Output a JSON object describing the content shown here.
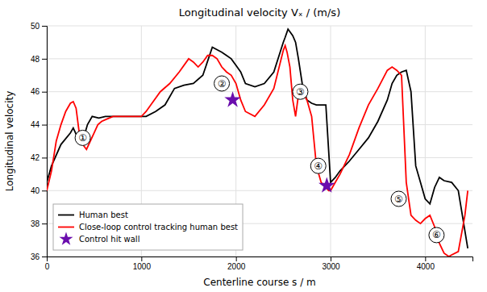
{
  "chart_data": {
    "type": "line",
    "title": "Longitudinal velocity Vₓ / (m/s)",
    "xlabel": "Centerline course s / m",
    "ylabel": "Longitudinal velocity",
    "xlim": [
      0,
      4500
    ],
    "ylim": [
      36,
      50
    ],
    "xticks": [
      0,
      1000,
      2000,
      3000,
      4000
    ],
    "yticks": [
      36,
      38,
      40,
      42,
      44,
      46,
      48,
      50
    ],
    "grid": true,
    "legend": "lower left",
    "series": [
      {
        "name": "Human best",
        "color": "#000000",
        "x": [
          0,
          50,
          150,
          250,
          280,
          320,
          380,
          430,
          480,
          550,
          620,
          700,
          780,
          850,
          950,
          1050,
          1150,
          1250,
          1350,
          1450,
          1550,
          1650,
          1750,
          1850,
          1900,
          1950,
          2000,
          2050,
          2100,
          2200,
          2300,
          2400,
          2500,
          2520,
          2550,
          2600,
          2630,
          2660,
          2700,
          2750,
          2800,
          2850,
          2900,
          2950,
          3000,
          3050,
          3100,
          3200,
          3300,
          3400,
          3500,
          3600,
          3650,
          3700,
          3750,
          3800,
          3850,
          3900,
          3950,
          4000,
          4050,
          4100,
          4150,
          4200,
          4280,
          4350,
          4450
        ],
        "values": [
          40.5,
          41.5,
          42.8,
          43.5,
          43.8,
          43.3,
          43.0,
          44.0,
          44.5,
          44.4,
          44.5,
          44.5,
          44.5,
          44.5,
          44.5,
          44.5,
          44.8,
          45.2,
          46.2,
          46.4,
          46.5,
          47.0,
          48.7,
          48.4,
          48.2,
          48.0,
          47.6,
          47.2,
          46.5,
          46.3,
          46.5,
          47.2,
          49.0,
          49.3,
          49.8,
          49.4,
          49.0,
          48.0,
          46.5,
          45.5,
          45.3,
          45.2,
          45.2,
          45.2,
          40.5,
          40.8,
          41.2,
          41.8,
          42.5,
          43.2,
          44.2,
          45.5,
          46.5,
          47.0,
          47.2,
          47.3,
          46.0,
          41.5,
          40.5,
          39.5,
          39.2,
          40.2,
          40.8,
          40.6,
          40.5,
          40.0,
          36.5
        ]
      },
      {
        "name": "Close-loop control tracking human best",
        "color": "#ff0000",
        "x": [
          0,
          50,
          100,
          150,
          200,
          250,
          280,
          310,
          350,
          380,
          420,
          460,
          500,
          540,
          580,
          620,
          660,
          700,
          750,
          800,
          850,
          900,
          950,
          1000,
          1050,
          1100,
          1200,
          1300,
          1400,
          1500,
          1550,
          1600,
          1650,
          1700,
          1750,
          1800,
          1850,
          1900,
          1950,
          2000,
          2050,
          2100,
          2200,
          2300,
          2400,
          2500,
          2520,
          2540,
          2570,
          2600,
          2630,
          2660,
          2700,
          2750,
          2800,
          2850,
          2900,
          2950,
          2980,
          3000,
          3050,
          3100,
          3200,
          3300,
          3400,
          3500,
          3600,
          3650,
          3700,
          3750,
          3800,
          3850,
          3900,
          3950,
          4000,
          4050,
          4100,
          4150,
          4200,
          4250,
          4280,
          4350,
          4420,
          4450
        ],
        "values": [
          40.0,
          41.2,
          43.0,
          44.0,
          44.8,
          45.3,
          45.4,
          45.0,
          43.2,
          42.8,
          42.5,
          43.0,
          43.5,
          44.0,
          44.2,
          44.3,
          44.4,
          44.5,
          44.5,
          44.5,
          44.5,
          44.5,
          44.5,
          44.5,
          44.8,
          45.2,
          46.0,
          46.5,
          47.2,
          48.0,
          47.8,
          47.5,
          47.8,
          48.2,
          48.2,
          48.0,
          47.5,
          47.2,
          47.0,
          46.5,
          45.5,
          44.8,
          44.5,
          45.2,
          46.2,
          48.5,
          48.8,
          48.4,
          47.5,
          45.5,
          44.5,
          45.8,
          46.0,
          45.5,
          44.5,
          41.5,
          40.5,
          40.2,
          40.0,
          40.0,
          40.5,
          41.0,
          42.2,
          43.8,
          45.2,
          46.2,
          47.3,
          47.5,
          47.3,
          47.0,
          40.5,
          38.5,
          38.2,
          38.0,
          38.3,
          38.5,
          37.8,
          36.8,
          36.2,
          36.0,
          36.1,
          36.3,
          38.5,
          40.0
        ]
      },
      {
        "name": "Control hit wall",
        "color": "#6a0dad",
        "type": "scatter",
        "marker": "star",
        "x": [
          1965,
          2960
        ],
        "values": [
          45.5,
          40.3
        ]
      }
    ],
    "annotations": [
      {
        "text": "①",
        "x": 380,
        "y": 43.2
      },
      {
        "text": "②",
        "x": 1850,
        "y": 46.5
      },
      {
        "text": "③",
        "x": 2680,
        "y": 46.0
      },
      {
        "text": "④",
        "x": 2870,
        "y": 41.5
      },
      {
        "text": "⑤",
        "x": 3720,
        "y": 39.5
      },
      {
        "text": "⑥",
        "x": 4120,
        "y": 37.3
      }
    ]
  }
}
